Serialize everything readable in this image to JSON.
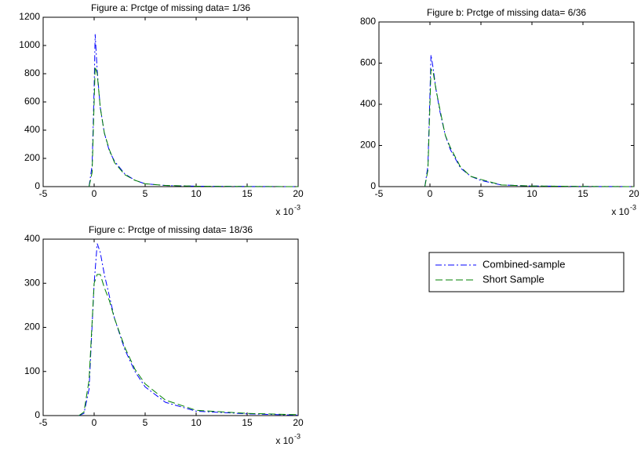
{
  "chart_data": [
    {
      "type": "line",
      "title": "Figure a: Prctge of missing data= 1/36",
      "x": [
        -0.5,
        -0.2,
        0,
        0.1,
        0.3,
        0.6,
        1,
        1.5,
        2,
        3,
        4,
        5,
        7,
        10,
        15,
        20
      ],
      "series": [
        {
          "color": "#0000ff",
          "linestyle": "dashdot",
          "values": [
            0,
            150,
            700,
            1080,
            820,
            560,
            380,
            250,
            180,
            90,
            45,
            20,
            8,
            3,
            1,
            0
          ]
        },
        {
          "color": "#008000",
          "linestyle": "dashed",
          "values": [
            0,
            100,
            600,
            850,
            800,
            560,
            380,
            260,
            170,
            85,
            45,
            20,
            8,
            3,
            1,
            0
          ]
        }
      ],
      "xlim": [
        -5,
        20
      ],
      "xticks": [
        -5,
        0,
        5,
        10,
        15,
        20
      ],
      "ylim": [
        0,
        1200
      ],
      "yticks": [
        0,
        200,
        400,
        600,
        800,
        1000,
        1200
      ],
      "x_scale_label": "x 10",
      "x_scale_exponent": "-3"
    },
    {
      "type": "line",
      "title": "Figure b: Prctge of missing data= 6/36",
      "x": [
        -0.5,
        -0.2,
        0,
        0.1,
        0.3,
        0.6,
        1,
        1.5,
        2,
        3,
        4,
        5,
        7,
        10,
        15,
        20
      ],
      "series": [
        {
          "color": "#0000ff",
          "linestyle": "dashdot",
          "values": [
            0,
            100,
            450,
            640,
            580,
            470,
            360,
            250,
            180,
            90,
            50,
            30,
            8,
            3,
            1,
            0
          ]
        },
        {
          "color": "#008000",
          "linestyle": "dashed",
          "values": [
            0,
            80,
            400,
            570,
            560,
            470,
            370,
            250,
            190,
            95,
            50,
            35,
            8,
            3,
            1,
            0
          ]
        }
      ],
      "xlim": [
        -5,
        20
      ],
      "xticks": [
        -5,
        0,
        5,
        10,
        15,
        20
      ],
      "ylim": [
        0,
        800
      ],
      "yticks": [
        0,
        200,
        400,
        600,
        800
      ],
      "x_scale_label": "x 10",
      "x_scale_exponent": "-3"
    },
    {
      "type": "line",
      "title": "Figure c: Prctge of missing data= 18/36",
      "x": [
        -1.5,
        -1,
        -0.5,
        0,
        0.3,
        0.6,
        1,
        1.5,
        2,
        3,
        4,
        5,
        7,
        10,
        15,
        20
      ],
      "series": [
        {
          "name": "Combined-sample",
          "color": "#0000ff",
          "linestyle": "dashdot",
          "values": [
            0,
            5,
            60,
            300,
            390,
            370,
            320,
            270,
            220,
            150,
            100,
            65,
            30,
            10,
            4,
            1
          ]
        },
        {
          "name": "Short Sample",
          "color": "#008000",
          "linestyle": "dashed",
          "values": [
            0,
            8,
            80,
            300,
            320,
            320,
            290,
            260,
            220,
            155,
            105,
            72,
            35,
            12,
            5,
            2
          ]
        }
      ],
      "xlim": [
        -5,
        20
      ],
      "xticks": [
        -5,
        0,
        5,
        10,
        15,
        20
      ],
      "ylim": [
        0,
        400
      ],
      "yticks": [
        0,
        100,
        200,
        300,
        400
      ],
      "x_scale_label": "x 10",
      "x_scale_exponent": "-3"
    }
  ]
}
